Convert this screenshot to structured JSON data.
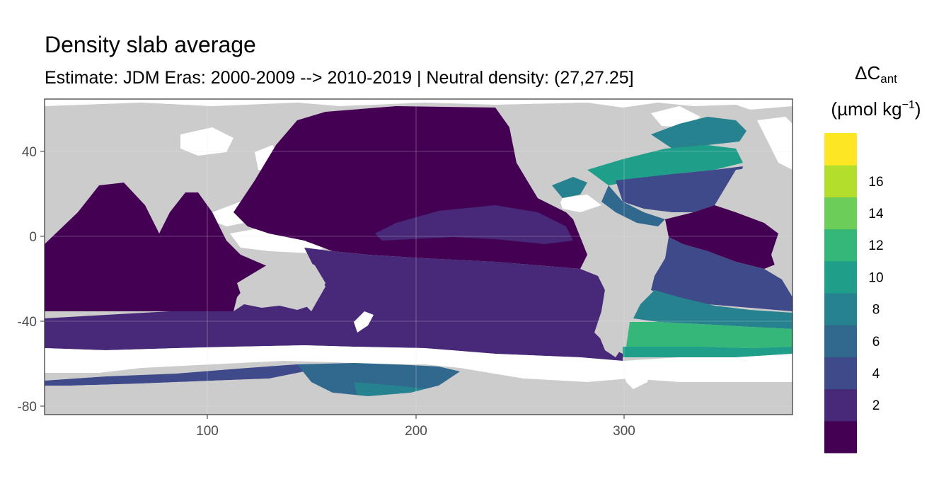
{
  "title": "Density slab average",
  "subtitle": "Estimate: JDM Eras: 2000-2009 --> 2010-2019 | Neutral density: (27,27.25]",
  "legend": {
    "title_line1_main": "ΔC",
    "title_line1_sub": "ant",
    "title_line2_pre": "(µmol kg",
    "title_line2_sup": "−1",
    "title_line2_post": ")",
    "bins": [
      {
        "label": "",
        "color": "#440154"
      },
      {
        "label": "2",
        "color": "#482878"
      },
      {
        "label": "4",
        "color": "#3E4A89"
      },
      {
        "label": "6",
        "color": "#31688E"
      },
      {
        "label": "8",
        "color": "#26828E"
      },
      {
        "label": "10",
        "color": "#1F9E89"
      },
      {
        "label": "12",
        "color": "#35B779"
      },
      {
        "label": "14",
        "color": "#6DCD59"
      },
      {
        "label": "16",
        "color": "#B4DE2C"
      },
      {
        "label": "",
        "color": "#FDE725"
      }
    ]
  },
  "axes": {
    "x_ticks": [
      "100",
      "200",
      "300"
    ],
    "y_ticks": [
      "40",
      "0",
      "-40",
      "-80"
    ],
    "grid": true
  },
  "colors": {
    "land": "#cccccc",
    "no_data": "#ffffff",
    "panel_border": "#333333",
    "grid": "#ebebeb",
    "tick_label": "#4d4d4d"
  }
}
